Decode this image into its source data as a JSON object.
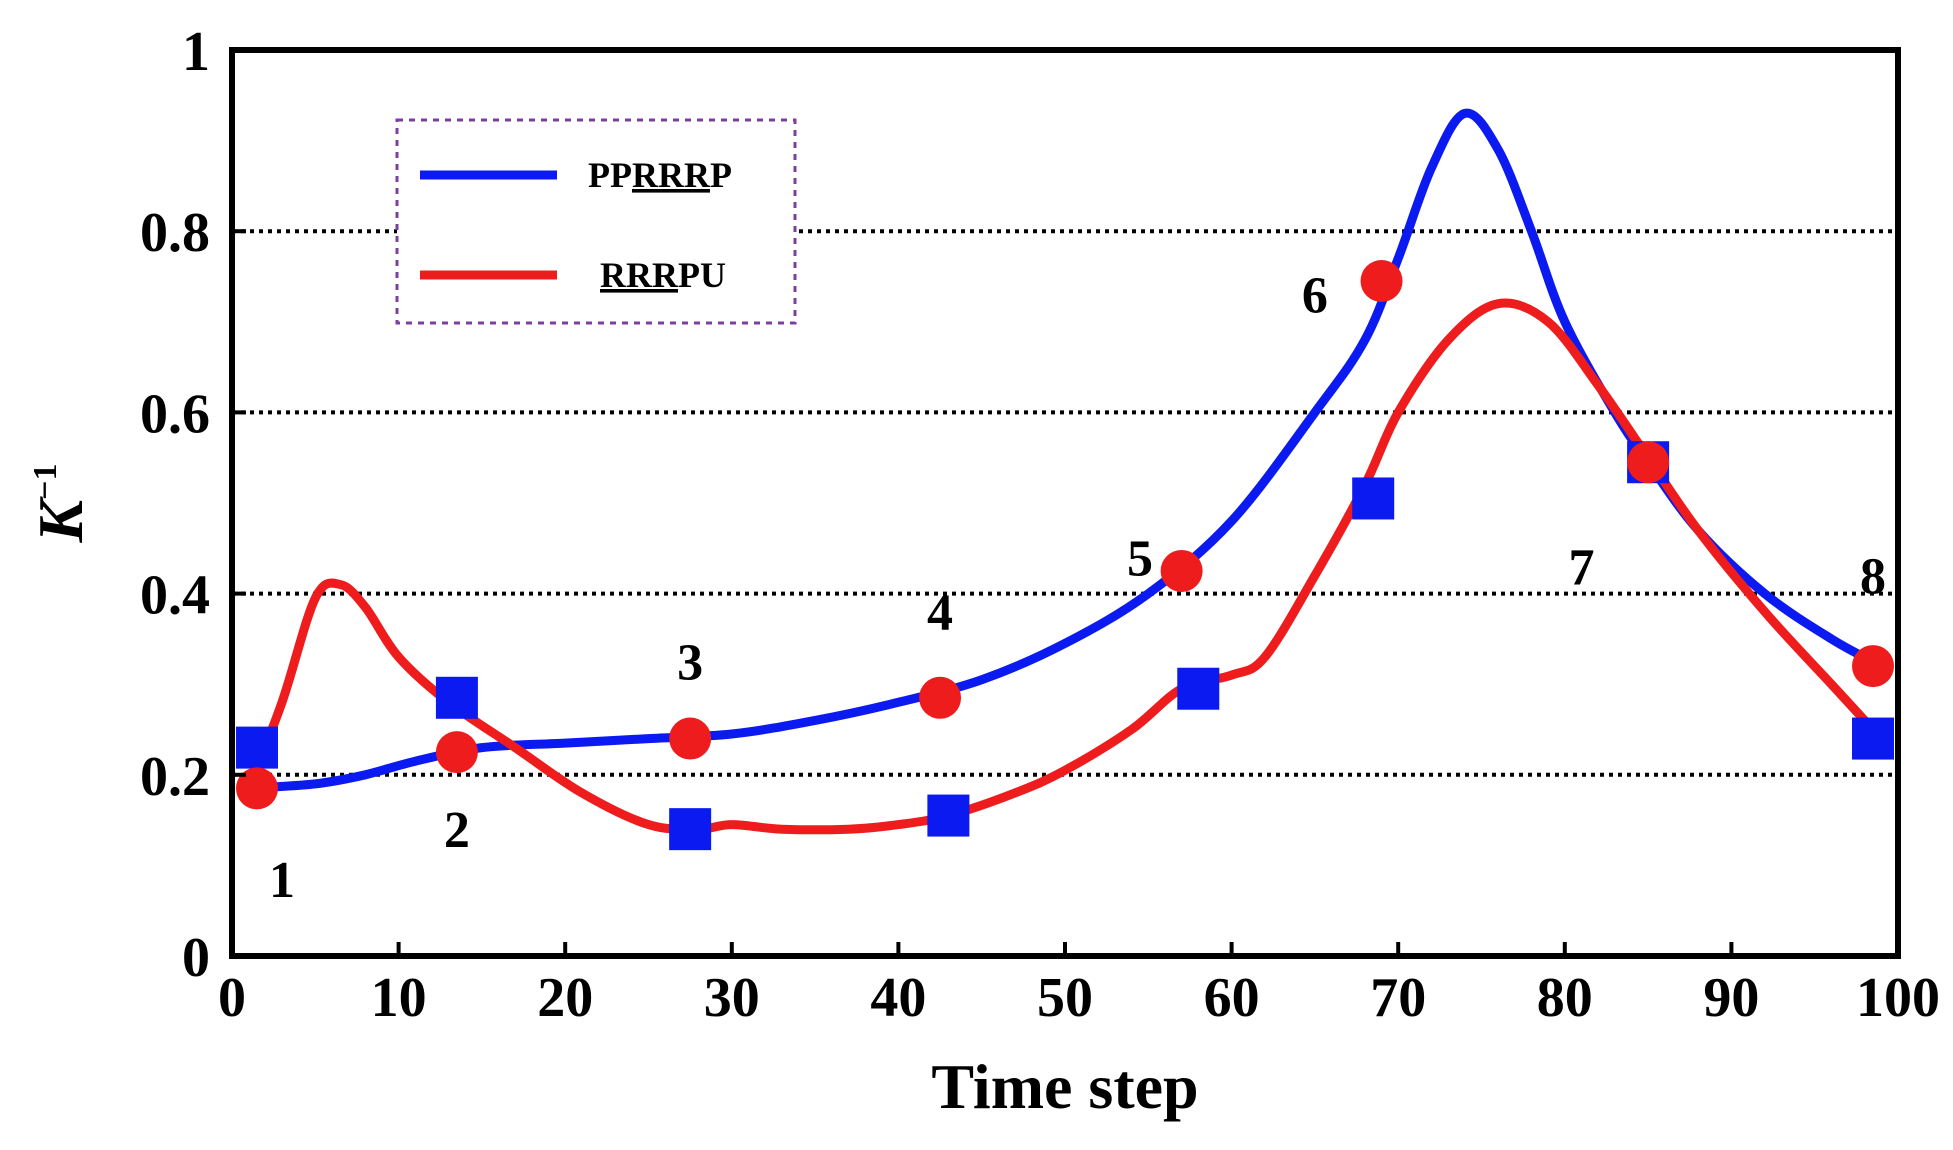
{
  "chart_data": {
    "type": "line",
    "xlabel": "Time step",
    "ylabel": "K",
    "ylabel_superscript": "−1",
    "xlim": [
      0,
      100
    ],
    "ylim": [
      0,
      1
    ],
    "x_ticks": [
      0,
      10,
      20,
      30,
      40,
      50,
      60,
      70,
      80,
      90,
      100
    ],
    "x_tick_labels": [
      "0",
      "10",
      "20",
      "30",
      "40",
      "50",
      "60",
      "70",
      "80",
      "90",
      "100"
    ],
    "y_ticks": [
      0,
      0.2,
      0.4,
      0.6,
      0.8,
      1
    ],
    "y_tick_labels": [
      "0",
      "0.2",
      "0.4",
      "0.6",
      "0.8",
      "1"
    ],
    "grid": "horizontal dotted lines at 0.2, 0.4, 0.6, 0.8",
    "legend_position": "top-left",
    "series": [
      {
        "name": "PPRRRP",
        "legend_plain_prefix": "PP",
        "legend_underlined": "RRR",
        "legend_plain_suffix": "P",
        "color": "#0a1af0",
        "marker": "square",
        "x": [
          1,
          5,
          8,
          11,
          15,
          20,
          25,
          30,
          35,
          40,
          45,
          50,
          55,
          60,
          65,
          68,
          70,
          72,
          74,
          76,
          78,
          80,
          83,
          85,
          88,
          92,
          96,
          99
        ],
        "y": [
          0.185,
          0.19,
          0.2,
          0.215,
          0.23,
          0.235,
          0.24,
          0.245,
          0.26,
          0.28,
          0.305,
          0.345,
          0.4,
          0.48,
          0.6,
          0.68,
          0.77,
          0.87,
          0.93,
          0.89,
          0.8,
          0.7,
          0.6,
          0.545,
          0.47,
          0.4,
          0.35,
          0.32
        ],
        "markers": [
          {
            "x": 1.5,
            "y": 0.23
          },
          {
            "x": 13.5,
            "y": 0.285
          },
          {
            "x": 27.5,
            "y": 0.14
          },
          {
            "x": 43,
            "y": 0.155
          },
          {
            "x": 58,
            "y": 0.295
          },
          {
            "x": 68.5,
            "y": 0.505
          },
          {
            "x": 85,
            "y": 0.545
          },
          {
            "x": 98.5,
            "y": 0.24
          }
        ]
      },
      {
        "name": "RRRPU",
        "legend_plain_prefix": "",
        "legend_underlined": "RRR",
        "legend_plain_suffix": "PU",
        "color": "#ee1c1c",
        "marker": "circle",
        "x": [
          1,
          3,
          5,
          6.5,
          8,
          10,
          13,
          17,
          21,
          25,
          28,
          30,
          33,
          37,
          40,
          43,
          47,
          50,
          54,
          57,
          60,
          62,
          65,
          68,
          70,
          73,
          76,
          79,
          82,
          85,
          88,
          92,
          96,
          99
        ],
        "y": [
          0.185,
          0.28,
          0.395,
          0.41,
          0.385,
          0.33,
          0.28,
          0.23,
          0.18,
          0.145,
          0.14,
          0.145,
          0.14,
          0.14,
          0.145,
          0.155,
          0.18,
          0.205,
          0.25,
          0.295,
          0.31,
          0.33,
          0.42,
          0.52,
          0.6,
          0.68,
          0.72,
          0.7,
          0.63,
          0.55,
          0.47,
          0.38,
          0.3,
          0.24
        ],
        "markers": [
          {
            "x": 1.5,
            "y": 0.185
          },
          {
            "x": 13.5,
            "y": 0.225
          },
          {
            "x": 27.5,
            "y": 0.24
          },
          {
            "x": 42.5,
            "y": 0.285
          },
          {
            "x": 57,
            "y": 0.425
          },
          {
            "x": 69,
            "y": 0.745
          },
          {
            "x": 85,
            "y": 0.545
          },
          {
            "x": 98.5,
            "y": 0.32
          }
        ]
      }
    ],
    "annotations": [
      {
        "text": "1",
        "x": 3,
        "y": 0.085
      },
      {
        "text": "2",
        "x": 13.5,
        "y": 0.14
      },
      {
        "text": "3",
        "x": 27.5,
        "y": 0.325
      },
      {
        "text": "4",
        "x": 42.5,
        "y": 0.38
      },
      {
        "text": "5",
        "x": 54.5,
        "y": 0.44
      },
      {
        "text": "6",
        "x": 65,
        "y": 0.73
      },
      {
        "text": "7",
        "x": 81,
        "y": 0.43
      },
      {
        "text": "8",
        "x": 98.5,
        "y": 0.42
      }
    ]
  }
}
